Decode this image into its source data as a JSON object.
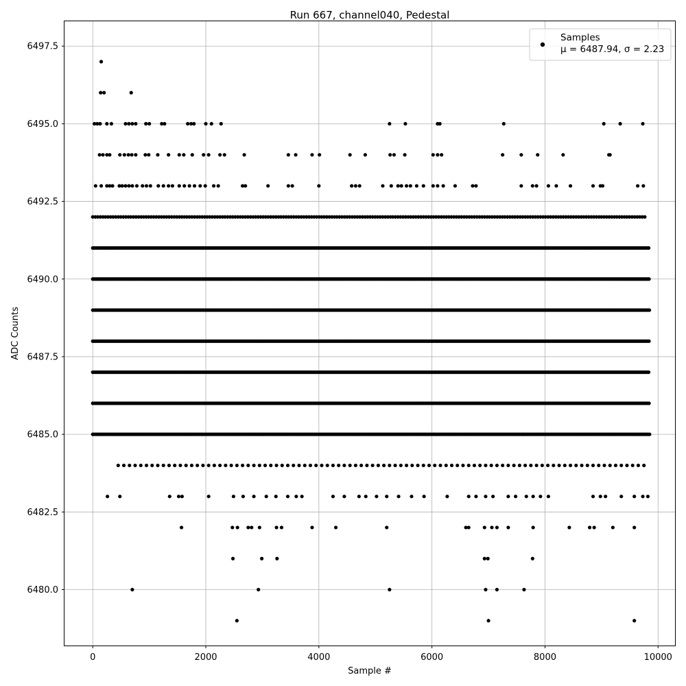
{
  "chart_data": {
    "type": "scatter",
    "title": "Run 667, channel040, Pedestal",
    "xlabel": "Sample #",
    "ylabel": "ADC Counts",
    "xlim": [
      -500,
      10300
    ],
    "ylim": [
      6478.2,
      6498.3
    ],
    "xticks": [
      0,
      2000,
      4000,
      6000,
      8000,
      10000
    ],
    "xtick_labels": [
      "0",
      "2000",
      "4000",
      "6000",
      "8000",
      "10000"
    ],
    "yticks": [
      6480.0,
      6482.5,
      6485.0,
      6487.5,
      6490.0,
      6492.5,
      6495.0,
      6497.5
    ],
    "ytick_labels": [
      "6480.0",
      "6482.5",
      "6485.0",
      "6487.5",
      "6490.0",
      "6492.5",
      "6495.0",
      "6497.5"
    ],
    "grid": true,
    "legend_position": "top-right",
    "marker_color": "#000000",
    "series": [
      {
        "name": "Samples",
        "stats_label": "μ = 6487.94, σ = 2.23",
        "points": [
          [
            150,
            6497
          ],
          [
            140,
            6496
          ],
          [
            200,
            6496
          ],
          [
            680,
            6496
          ],
          [
            30,
            6495
          ],
          [
            80,
            6495
          ],
          [
            130,
            6495
          ],
          [
            250,
            6495
          ],
          [
            330,
            6495
          ],
          [
            580,
            6495
          ],
          [
            640,
            6495
          ],
          [
            700,
            6495
          ],
          [
            760,
            6495
          ],
          [
            940,
            6495
          ],
          [
            1000,
            6495
          ],
          [
            1220,
            6495
          ],
          [
            1270,
            6495
          ],
          [
            1680,
            6495
          ],
          [
            1740,
            6495
          ],
          [
            1790,
            6495
          ],
          [
            2000,
            6495
          ],
          [
            2100,
            6495
          ],
          [
            2270,
            6495
          ],
          [
            5250,
            6495
          ],
          [
            5530,
            6495
          ],
          [
            6100,
            6495
          ],
          [
            6140,
            6495
          ],
          [
            7270,
            6495
          ],
          [
            9040,
            6495
          ],
          [
            9330,
            6495
          ],
          [
            9730,
            6495
          ],
          [
            120,
            6494
          ],
          [
            180,
            6494
          ],
          [
            250,
            6494
          ],
          [
            300,
            6494
          ],
          [
            480,
            6494
          ],
          [
            560,
            6494
          ],
          [
            630,
            6494
          ],
          [
            690,
            6494
          ],
          [
            760,
            6494
          ],
          [
            930,
            6494
          ],
          [
            990,
            6494
          ],
          [
            1150,
            6494
          ],
          [
            1340,
            6494
          ],
          [
            1530,
            6494
          ],
          [
            1610,
            6494
          ],
          [
            1760,
            6494
          ],
          [
            1960,
            6494
          ],
          [
            2050,
            6494
          ],
          [
            2250,
            6494
          ],
          [
            2330,
            6494
          ],
          [
            2680,
            6494
          ],
          [
            3460,
            6494
          ],
          [
            3590,
            6494
          ],
          [
            3880,
            6494
          ],
          [
            4010,
            6494
          ],
          [
            4550,
            6494
          ],
          [
            4820,
            6494
          ],
          [
            5260,
            6494
          ],
          [
            5330,
            6494
          ],
          [
            5520,
            6494
          ],
          [
            6020,
            6494
          ],
          [
            6100,
            6494
          ],
          [
            6170,
            6494
          ],
          [
            7250,
            6494
          ],
          [
            7580,
            6494
          ],
          [
            7870,
            6494
          ],
          [
            8320,
            6494
          ],
          [
            9130,
            6494
          ],
          [
            9150,
            6494
          ],
          [
            50,
            6493
          ],
          [
            150,
            6493
          ],
          [
            250,
            6493
          ],
          [
            300,
            6493
          ],
          [
            350,
            6493
          ],
          [
            470,
            6493
          ],
          [
            520,
            6493
          ],
          [
            580,
            6493
          ],
          [
            640,
            6493
          ],
          [
            700,
            6493
          ],
          [
            780,
            6493
          ],
          [
            880,
            6493
          ],
          [
            950,
            6493
          ],
          [
            1020,
            6493
          ],
          [
            1160,
            6493
          ],
          [
            1250,
            6493
          ],
          [
            1340,
            6493
          ],
          [
            1410,
            6493
          ],
          [
            1530,
            6493
          ],
          [
            1620,
            6493
          ],
          [
            1710,
            6493
          ],
          [
            1800,
            6493
          ],
          [
            1900,
            6493
          ],
          [
            1990,
            6493
          ],
          [
            2140,
            6493
          ],
          [
            2220,
            6493
          ],
          [
            2650,
            6493
          ],
          [
            2700,
            6493
          ],
          [
            3100,
            6493
          ],
          [
            3460,
            6493
          ],
          [
            3530,
            6493
          ],
          [
            4000,
            6493
          ],
          [
            4580,
            6493
          ],
          [
            4650,
            6493
          ],
          [
            4720,
            6493
          ],
          [
            5130,
            6493
          ],
          [
            5280,
            6493
          ],
          [
            5400,
            6493
          ],
          [
            5460,
            6493
          ],
          [
            5550,
            6493
          ],
          [
            5620,
            6493
          ],
          [
            5730,
            6493
          ],
          [
            5850,
            6493
          ],
          [
            6020,
            6493
          ],
          [
            6100,
            6493
          ],
          [
            6200,
            6493
          ],
          [
            6410,
            6493
          ],
          [
            6720,
            6493
          ],
          [
            6780,
            6493
          ],
          [
            7580,
            6493
          ],
          [
            7780,
            6493
          ],
          [
            7850,
            6493
          ],
          [
            8060,
            6493
          ],
          [
            8200,
            6493
          ],
          [
            8450,
            6493
          ],
          [
            8850,
            6493
          ],
          [
            8980,
            6493
          ],
          [
            9020,
            6493
          ],
          [
            9640,
            6493
          ],
          [
            9740,
            6493
          ],
          [
            700,
            6480
          ],
          [
            2930,
            6480
          ],
          [
            5250,
            6480
          ],
          [
            6950,
            6480
          ],
          [
            7150,
            6480
          ],
          [
            7630,
            6480
          ],
          [
            2480,
            6481
          ],
          [
            2990,
            6481
          ],
          [
            3260,
            6481
          ],
          [
            6930,
            6481
          ],
          [
            6990,
            6481
          ],
          [
            7780,
            6481
          ],
          [
            2550,
            6479
          ],
          [
            7000,
            6479
          ],
          [
            9580,
            6479
          ],
          [
            1570,
            6482
          ],
          [
            2470,
            6482
          ],
          [
            2560,
            6482
          ],
          [
            2750,
            6482
          ],
          [
            2810,
            6482
          ],
          [
            2950,
            6482
          ],
          [
            3250,
            6482
          ],
          [
            3340,
            6482
          ],
          [
            3880,
            6482
          ],
          [
            4300,
            6482
          ],
          [
            5200,
            6482
          ],
          [
            6600,
            6482
          ],
          [
            6650,
            6482
          ],
          [
            6930,
            6482
          ],
          [
            7060,
            6482
          ],
          [
            7150,
            6482
          ],
          [
            7350,
            6482
          ],
          [
            7790,
            6482
          ],
          [
            8430,
            6482
          ],
          [
            8790,
            6482
          ],
          [
            8870,
            6482
          ],
          [
            9200,
            6482
          ],
          [
            9580,
            6482
          ],
          [
            260,
            6483
          ],
          [
            480,
            6483
          ],
          [
            1360,
            6483
          ],
          [
            1520,
            6483
          ],
          [
            1580,
            6483
          ],
          [
            2050,
            6483
          ],
          [
            2490,
            6483
          ],
          [
            2660,
            6483
          ],
          [
            2850,
            6483
          ],
          [
            3070,
            6483
          ],
          [
            3240,
            6483
          ],
          [
            3450,
            6483
          ],
          [
            3600,
            6483
          ],
          [
            3700,
            6483
          ],
          [
            4250,
            6483
          ],
          [
            4450,
            6483
          ],
          [
            4710,
            6483
          ],
          [
            4830,
            6483
          ],
          [
            5020,
            6483
          ],
          [
            5200,
            6483
          ],
          [
            5410,
            6483
          ],
          [
            5640,
            6483
          ],
          [
            5860,
            6483
          ],
          [
            6270,
            6483
          ],
          [
            6650,
            6483
          ],
          [
            6780,
            6483
          ],
          [
            6950,
            6483
          ],
          [
            7080,
            6483
          ],
          [
            7350,
            6483
          ],
          [
            7480,
            6483
          ],
          [
            7670,
            6483
          ],
          [
            7790,
            6483
          ],
          [
            7920,
            6483
          ],
          [
            8060,
            6483
          ],
          [
            8850,
            6483
          ],
          [
            8980,
            6483
          ],
          [
            9070,
            6483
          ],
          [
            9350,
            6483
          ],
          [
            9580,
            6483
          ],
          [
            9730,
            6483
          ],
          [
            9820,
            6483
          ]
        ],
        "bands": [
          {
            "y": 6484,
            "x_from": 450,
            "x_to": 9830,
            "step": 100
          },
          {
            "y": 6485,
            "x_from": 0,
            "x_to": 9850,
            "step": 25
          },
          {
            "y": 6486,
            "x_from": 0,
            "x_to": 9850,
            "step": 30
          },
          {
            "y": 6487,
            "x_from": 0,
            "x_to": 9850,
            "step": 22
          },
          {
            "y": 6488,
            "x_from": 0,
            "x_to": 9850,
            "step": 20
          },
          {
            "y": 6489,
            "x_from": 0,
            "x_to": 9850,
            "step": 18
          },
          {
            "y": 6490,
            "x_from": 0,
            "x_to": 9850,
            "step": 20
          },
          {
            "y": 6491,
            "x_from": 0,
            "x_to": 9850,
            "step": 22
          },
          {
            "y": 6492,
            "x_from": 0,
            "x_to": 9790,
            "step": 45
          }
        ]
      }
    ]
  }
}
